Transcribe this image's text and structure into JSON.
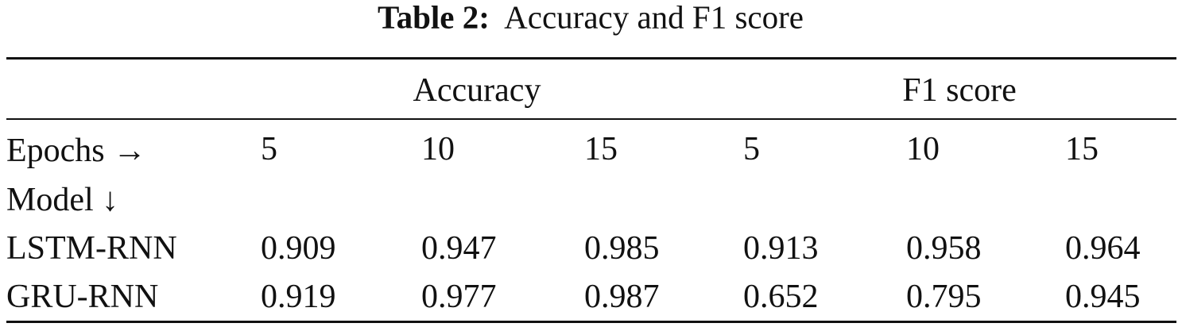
{
  "title": {
    "label": "Table 2:",
    "text": "Accuracy and F1 score"
  },
  "table": {
    "groups": [
      "Accuracy",
      "F1 score"
    ],
    "epochs_label": "Epochs →",
    "epochs": [
      5,
      10,
      15,
      5,
      10,
      15
    ],
    "model_label": "Model ↓",
    "rows": [
      [
        "LSTM-RNN",
        0.909,
        0.947,
        0.985,
        0.913,
        0.958,
        0.964
      ],
      [
        "GRU-RNN",
        0.919,
        0.977,
        0.987,
        0.652,
        0.795,
        0.945
      ]
    ]
  }
}
